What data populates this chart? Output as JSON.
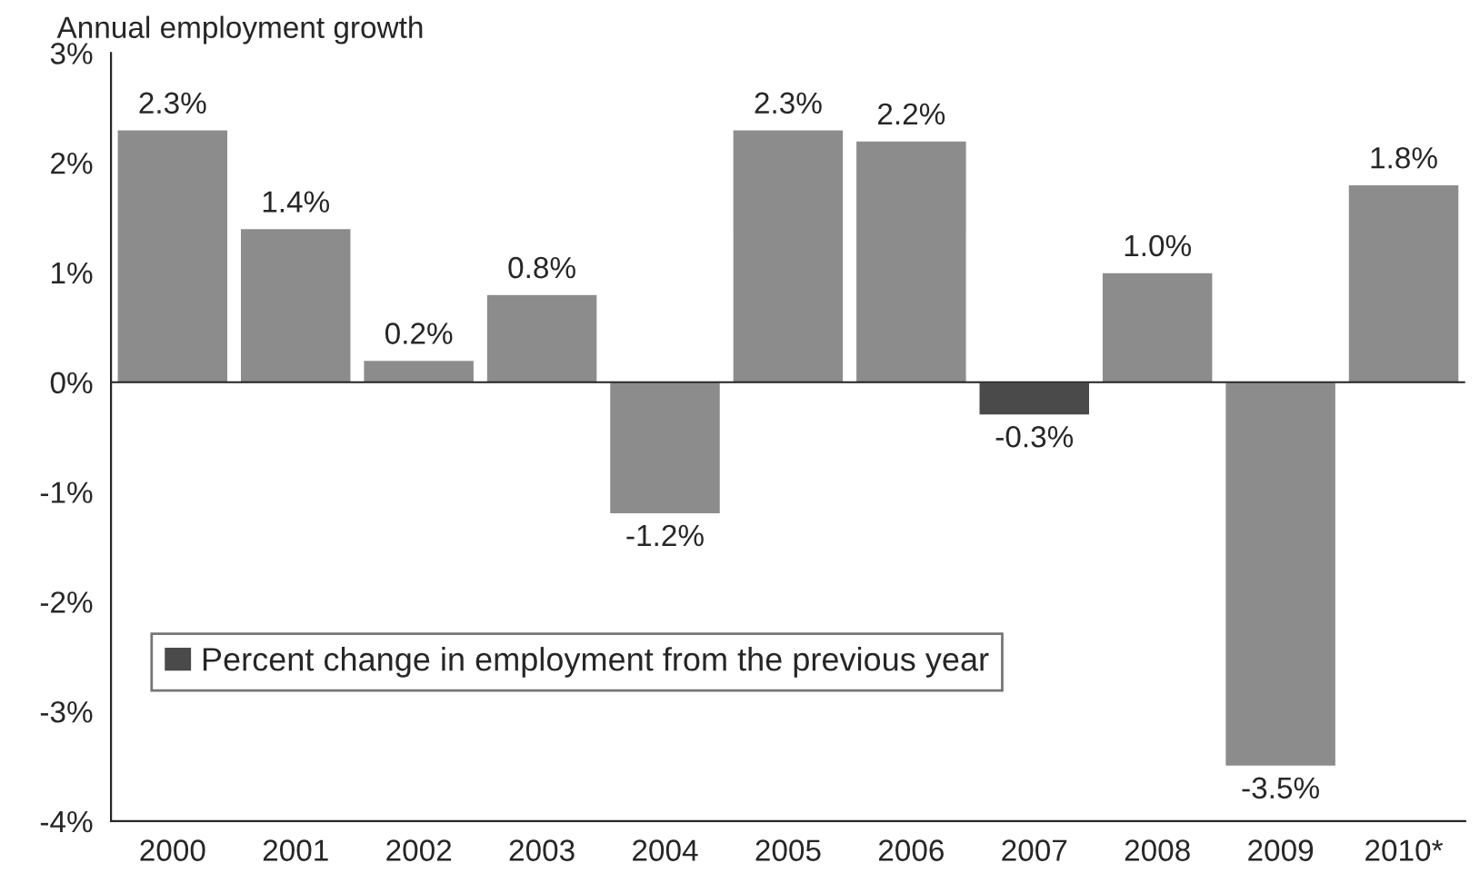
{
  "chart_data": {
    "type": "bar",
    "title": "Annual employment growth",
    "categories": [
      "2000",
      "2001",
      "2002",
      "2003",
      "2004",
      "2005",
      "2006",
      "2007",
      "2008",
      "2009",
      "2010*"
    ],
    "series": [
      {
        "name": "Percent change in employment from the previous year",
        "color": "#4a4a4a",
        "colors": [
          "#8c8c8c",
          "#8c8c8c",
          "#8c8c8c",
          "#8c8c8c",
          "#8c8c8c",
          "#8c8c8c",
          "#8c8c8c",
          "#4a4a4a",
          "#8c8c8c",
          "#8c8c8c",
          "#8c8c8c"
        ],
        "values": [
          2.3,
          1.4,
          0.2,
          0.8,
          -1.2,
          2.3,
          2.2,
          -0.3,
          1.0,
          -3.5,
          1.8
        ],
        "value_labels": [
          "2.3%",
          "1.4%",
          "0.2%",
          "0.8%",
          "-1.2%",
          "2.3%",
          "2.2%",
          "-0.3%",
          "1.0%",
          "-3.5%",
          "1.8%"
        ]
      }
    ],
    "ylim": [
      -4,
      3
    ],
    "yticks": [
      {
        "value": -4,
        "label": "-4%"
      },
      {
        "value": -3,
        "label": "-3%"
      },
      {
        "value": -2,
        "label": "-2%"
      },
      {
        "value": -1,
        "label": "-1%"
      },
      {
        "value": 0,
        "label": "0%"
      },
      {
        "value": 1,
        "label": "1%"
      },
      {
        "value": 2,
        "label": "2%"
      },
      {
        "value": 3,
        "label": "3%"
      }
    ],
    "legend": "bottom left"
  }
}
